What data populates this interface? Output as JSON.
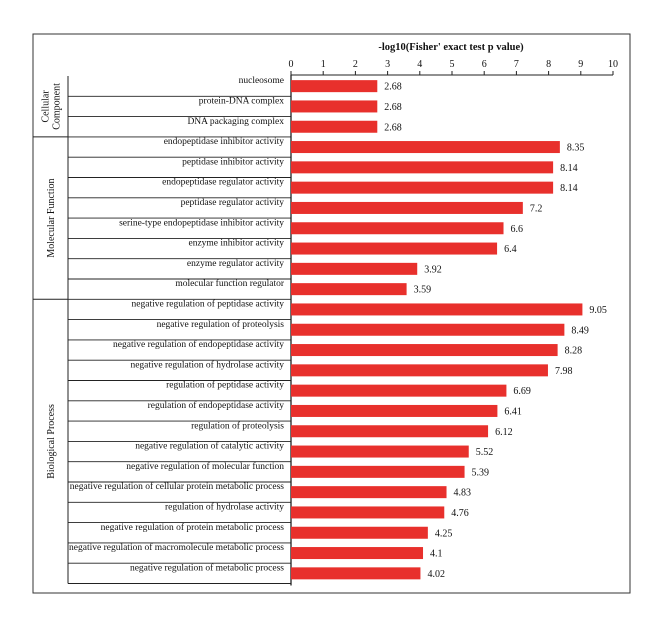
{
  "chart_data": {
    "type": "bar",
    "orientation": "horizontal",
    "xlabel": "-log10(Fisher' exact test p value)",
    "xlim": [
      0,
      10
    ],
    "xticks": [
      "0",
      "1",
      "2",
      "3",
      "4",
      "5",
      "6",
      "7",
      "8",
      "9",
      "10"
    ],
    "bar_color": "#e8302c",
    "grid": false,
    "groups": [
      {
        "name": "Cellular Component",
        "name_lines": [
          "Cellular",
          "Component"
        ],
        "categories": [
          "nucleosome",
          "protein-DNA complex",
          "DNA packaging complex"
        ],
        "values": [
          2.68,
          2.68,
          2.68
        ],
        "value_labels": [
          "2.68",
          "2.68",
          "2.68"
        ]
      },
      {
        "name": "Molecular Function",
        "name_lines": [
          "Molecular Function"
        ],
        "categories": [
          "endopeptidase inhibitor activity",
          "peptidase inhibitor activity",
          "endopeptidase regulator activity",
          "peptidase regulator activity",
          "serine-type endopeptidase inhibitor activity",
          "enzyme inhibitor activity",
          "enzyme regulator activity",
          "molecular function regulator"
        ],
        "values": [
          8.35,
          8.14,
          8.14,
          7.2,
          6.6,
          6.4,
          3.92,
          3.59
        ],
        "value_labels": [
          "8.35",
          "8.14",
          "8.14",
          "7.2",
          "6.6",
          "6.4",
          "3.92",
          "3.59"
        ]
      },
      {
        "name": "Biological Process",
        "name_lines": [
          "Biological Process"
        ],
        "categories": [
          "negative regulation of peptidase activity",
          "negative regulation of proteolysis",
          "negative regulation of endopeptidase activity",
          "negative regulation of hydrolase activity",
          "regulation of peptidase activity",
          "regulation of endopeptidase activity",
          "regulation of proteolysis",
          "negative regulation of catalytic activity",
          "negative regulation of molecular function",
          "negative regulation of cellular protein metabolic process",
          "regulation of hydrolase activity",
          "negative regulation of protein metabolic process",
          "negative regulation of macromolecule metabolic process",
          "negative regulation of metabolic process"
        ],
        "values": [
          9.05,
          8.49,
          8.28,
          7.98,
          6.69,
          6.41,
          6.12,
          5.52,
          5.39,
          4.83,
          4.76,
          4.25,
          4.1,
          4.02
        ],
        "value_labels": [
          "9.05",
          "8.49",
          "8.28",
          "7.98",
          "6.69",
          "6.41",
          "6.12",
          "5.52",
          "5.39",
          "4.83",
          "4.76",
          "4.25",
          "4.1",
          "4.02"
        ]
      }
    ]
  }
}
